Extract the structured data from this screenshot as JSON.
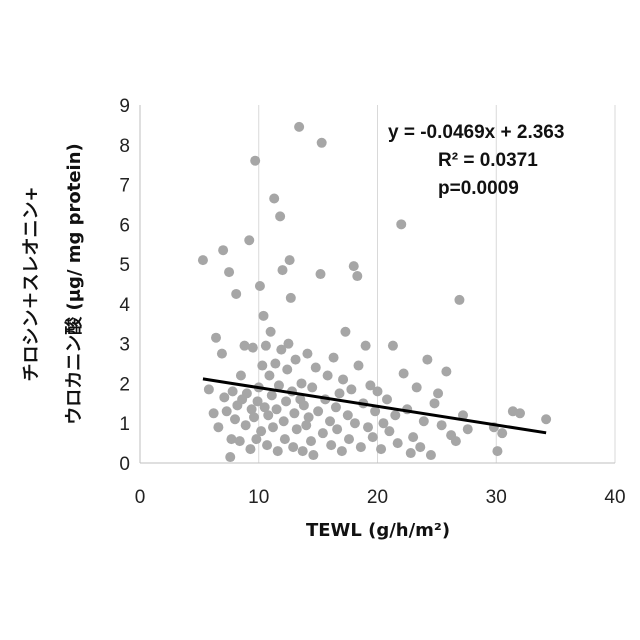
{
  "chart_data": {
    "type": "scatter",
    "title": "",
    "xlabel": "TEWL (g/h/m²)",
    "ylabel_line1": "チロシン＋スレオニン+",
    "ylabel_line2": "ウロカニン酸 (μg/ mg protein)",
    "xlim": [
      0,
      40
    ],
    "ylim": [
      0,
      9
    ],
    "xticks": [
      "0",
      "10",
      "20",
      "30",
      "40"
    ],
    "yticks": [
      "0",
      "1",
      "2",
      "3",
      "4",
      "5",
      "6",
      "7",
      "8",
      "9"
    ],
    "grid": "vertical",
    "marker_color": "#a6a6a6",
    "trend_color": "#000000",
    "annotations": {
      "equation": "y = -0.0469x + 2.363",
      "r2": "R² = 0.0371",
      "p": "p=0.0009"
    },
    "trendline": {
      "slope": -0.0469,
      "intercept": 2.363,
      "x_range": [
        5.3,
        34.2
      ]
    },
    "series": [
      {
        "points": [
          [
            5.3,
            5.1
          ],
          [
            5.8,
            1.85
          ],
          [
            6.2,
            1.25
          ],
          [
            6.4,
            3.15
          ],
          [
            6.6,
            0.9
          ],
          [
            6.9,
            2.75
          ],
          [
            7.0,
            5.35
          ],
          [
            7.1,
            1.65
          ],
          [
            7.3,
            1.3
          ],
          [
            7.5,
            4.8
          ],
          [
            7.6,
            0.15
          ],
          [
            7.7,
            0.6
          ],
          [
            7.8,
            1.8
          ],
          [
            8.0,
            1.1
          ],
          [
            8.1,
            4.25
          ],
          [
            8.2,
            1.45
          ],
          [
            8.4,
            0.55
          ],
          [
            8.5,
            2.2
          ],
          [
            8.6,
            1.6
          ],
          [
            8.8,
            2.95
          ],
          [
            8.9,
            0.95
          ],
          [
            9.0,
            1.75
          ],
          [
            9.2,
            5.6
          ],
          [
            9.3,
            0.35
          ],
          [
            9.4,
            1.35
          ],
          [
            9.5,
            2.9
          ],
          [
            9.6,
            1.15
          ],
          [
            9.7,
            7.6
          ],
          [
            9.8,
            0.6
          ],
          [
            9.9,
            1.55
          ],
          [
            10.0,
            1.9
          ],
          [
            10.1,
            4.45
          ],
          [
            10.2,
            0.8
          ],
          [
            10.3,
            2.45
          ],
          [
            10.4,
            3.7
          ],
          [
            10.5,
            1.4
          ],
          [
            10.6,
            2.95
          ],
          [
            10.7,
            0.45
          ],
          [
            10.8,
            1.2
          ],
          [
            10.9,
            2.2
          ],
          [
            11.0,
            3.3
          ],
          [
            11.1,
            1.7
          ],
          [
            11.2,
            0.9
          ],
          [
            11.3,
            6.65
          ],
          [
            11.4,
            2.5
          ],
          [
            11.5,
            1.35
          ],
          [
            11.6,
            0.3
          ],
          [
            11.7,
            1.95
          ],
          [
            11.8,
            6.2
          ],
          [
            11.9,
            2.85
          ],
          [
            12.0,
            4.85
          ],
          [
            12.1,
            1.05
          ],
          [
            12.2,
            0.6
          ],
          [
            12.3,
            1.55
          ],
          [
            12.4,
            2.35
          ],
          [
            12.5,
            3.0
          ],
          [
            12.6,
            5.1
          ],
          [
            12.7,
            4.15
          ],
          [
            12.8,
            1.8
          ],
          [
            12.9,
            0.4
          ],
          [
            13.0,
            1.25
          ],
          [
            13.1,
            2.6
          ],
          [
            13.2,
            0.85
          ],
          [
            13.4,
            8.45
          ],
          [
            13.5,
            1.6
          ],
          [
            13.6,
            2.0
          ],
          [
            13.7,
            0.3
          ],
          [
            13.8,
            1.45
          ],
          [
            14.0,
            0.95
          ],
          [
            14.1,
            2.75
          ],
          [
            14.2,
            1.15
          ],
          [
            14.4,
            0.55
          ],
          [
            14.5,
            1.9
          ],
          [
            14.6,
            0.2
          ],
          [
            14.8,
            2.4
          ],
          [
            15.0,
            1.3
          ],
          [
            15.2,
            4.75
          ],
          [
            15.3,
            8.05
          ],
          [
            15.4,
            0.75
          ],
          [
            15.6,
            1.6
          ],
          [
            15.8,
            2.2
          ],
          [
            16.0,
            1.05
          ],
          [
            16.1,
            0.45
          ],
          [
            16.3,
            2.65
          ],
          [
            16.5,
            1.4
          ],
          [
            16.6,
            0.85
          ],
          [
            16.8,
            1.75
          ],
          [
            17.0,
            0.3
          ],
          [
            17.1,
            2.1
          ],
          [
            17.3,
            3.3
          ],
          [
            17.5,
            1.2
          ],
          [
            17.6,
            0.6
          ],
          [
            17.8,
            1.85
          ],
          [
            18.0,
            4.95
          ],
          [
            18.1,
            1.0
          ],
          [
            18.3,
            4.7
          ],
          [
            18.4,
            2.45
          ],
          [
            18.6,
            0.4
          ],
          [
            18.8,
            1.5
          ],
          [
            19.0,
            2.95
          ],
          [
            19.2,
            0.9
          ],
          [
            19.4,
            1.95
          ],
          [
            19.6,
            0.65
          ],
          [
            19.8,
            1.3
          ],
          [
            20.0,
            1.8
          ],
          [
            20.3,
            0.35
          ],
          [
            20.5,
            1.0
          ],
          [
            20.8,
            1.6
          ],
          [
            21.0,
            0.8
          ],
          [
            21.3,
            2.95
          ],
          [
            21.5,
            1.2
          ],
          [
            21.7,
            0.5
          ],
          [
            22.0,
            6.0
          ],
          [
            22.2,
            2.25
          ],
          [
            22.5,
            1.35
          ],
          [
            22.8,
            0.25
          ],
          [
            23.0,
            0.65
          ],
          [
            23.3,
            1.9
          ],
          [
            23.6,
            0.4
          ],
          [
            23.9,
            1.05
          ],
          [
            24.2,
            2.6
          ],
          [
            24.5,
            0.2
          ],
          [
            24.8,
            1.5
          ],
          [
            25.1,
            1.75
          ],
          [
            25.4,
            0.95
          ],
          [
            25.8,
            2.3
          ],
          [
            26.2,
            0.7
          ],
          [
            26.6,
            0.55
          ],
          [
            26.9,
            4.1
          ],
          [
            27.2,
            1.2
          ],
          [
            27.6,
            0.85
          ],
          [
            29.8,
            0.9
          ],
          [
            30.1,
            0.3
          ],
          [
            30.5,
            0.75
          ],
          [
            31.4,
            1.3
          ],
          [
            32.0,
            1.25
          ],
          [
            34.2,
            1.1
          ]
        ]
      }
    ]
  }
}
